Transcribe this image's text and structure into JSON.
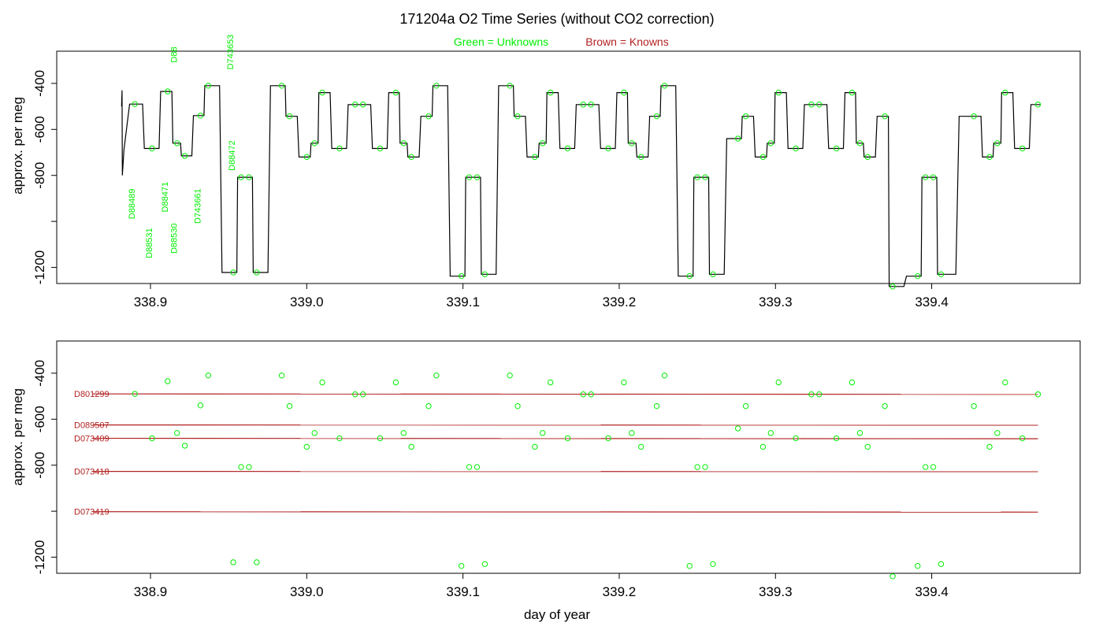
{
  "chart_data": {
    "type": "line",
    "title": "171204a   O2 Time Series (without CO2 correction)",
    "legend": {
      "unknowns": "Green = Unknowns",
      "knowns": "Brown = Knowns",
      "placement": "top-center",
      "colors": {
        "unknowns": "#00ee00",
        "knowns": "#b22222",
        "trace": "#000000"
      }
    },
    "xlabel": "day of year",
    "xlim": [
      338.84,
      339.495
    ],
    "xticks": [
      338.9,
      339.0,
      339.1,
      339.2,
      339.3,
      339.4
    ],
    "xtick_labels": [
      "338.9",
      "339.0",
      "339.1",
      "339.2",
      "339.3",
      "339.4"
    ],
    "panels": [
      {
        "name": "top",
        "ylabel": "approx. per meg",
        "ylim": [
          -1270,
          -260
        ],
        "yticks": [
          -400,
          -600,
          -800,
          -1000,
          -1200
        ],
        "ytick_labels": [
          "-400",
          "-600",
          "-800",
          "",
          "-1200"
        ],
        "jog_labels": [
          {
            "text": "D88",
            "x": 338.917,
            "y": -310
          },
          {
            "text": "D743653",
            "x": 338.953,
            "y": -340
          },
          {
            "text": "D88472",
            "x": 338.954,
            "y": -780
          },
          {
            "text": "D88489",
            "x": 338.89,
            "y": -990
          },
          {
            "text": "D88471",
            "x": 338.911,
            "y": -960
          },
          {
            "text": "D743661",
            "x": 338.932,
            "y": -1010
          },
          {
            "text": "D88531",
            "x": 338.901,
            "y": -1160
          },
          {
            "text": "D88530",
            "x": 338.917,
            "y": -1140
          }
        ]
      },
      {
        "name": "bottom",
        "ylabel": "approx. per meg",
        "ylim": [
          -1270,
          -260
        ],
        "yticks": [
          -400,
          -600,
          -800,
          -1000,
          -1200
        ],
        "ytick_labels": [
          "-400",
          "-600",
          "-800",
          "",
          "-1200"
        ],
        "known_lines": [
          {
            "name": "D801299",
            "values": [
              -490,
              -492
            ]
          },
          {
            "name": "D089507",
            "values": [
              -625,
              -626
            ]
          },
          {
            "name": "D073409",
            "values": [
              -683,
              -685
            ]
          },
          {
            "name": "D073418",
            "values": [
              -827,
              -828
            ]
          },
          {
            "name": "D073419",
            "values": [
              -1002,
              -1004
            ]
          }
        ]
      }
    ],
    "unknowns": {
      "x": [
        338.89,
        338.901,
        338.911,
        338.917,
        338.922,
        338.932,
        338.937,
        338.953,
        338.958,
        338.963,
        338.968,
        338.984,
        338.989,
        339.0,
        339.005,
        339.01,
        339.021,
        339.031,
        339.036,
        339.047,
        339.057,
        339.062,
        339.067,
        339.078,
        339.083,
        339.099,
        339.104,
        339.109,
        339.114,
        339.13,
        339.135,
        339.146,
        339.151,
        339.156,
        339.167,
        339.177,
        339.182,
        339.193,
        339.203,
        339.208,
        339.214,
        339.224,
        339.229,
        339.245,
        339.25,
        339.255,
        339.26,
        339.276,
        339.281,
        339.292,
        339.297,
        339.302,
        339.313,
        339.323,
        339.328,
        339.339,
        339.349,
        339.354,
        339.359,
        339.37,
        339.375,
        339.391,
        339.396,
        339.401,
        339.406,
        339.427,
        339.437,
        339.442,
        339.447,
        339.458,
        339.468
      ],
      "y": [
        -490,
        -683,
        -435,
        -660,
        -715,
        -540,
        -410,
        -1222,
        -808,
        -808,
        -1222,
        -410,
        -543,
        -720,
        -660,
        -440,
        -683,
        -492,
        -492,
        -683,
        -440,
        -660,
        -720,
        -543,
        -410,
        -1238,
        -808,
        -808,
        -1230,
        -410,
        -543,
        -720,
        -660,
        -440,
        -683,
        -492,
        -492,
        -683,
        -440,
        -660,
        -720,
        -543,
        -410,
        -1238,
        -808,
        -808,
        -1230,
        -640,
        -543,
        -720,
        -660,
        -440,
        -683,
        -492,
        -492,
        -683,
        -440,
        -660,
        -720,
        -543,
        -1283,
        -1238,
        -808,
        -808,
        -1230,
        -543,
        -720,
        -660,
        -440,
        -683,
        -492
      ]
    }
  }
}
